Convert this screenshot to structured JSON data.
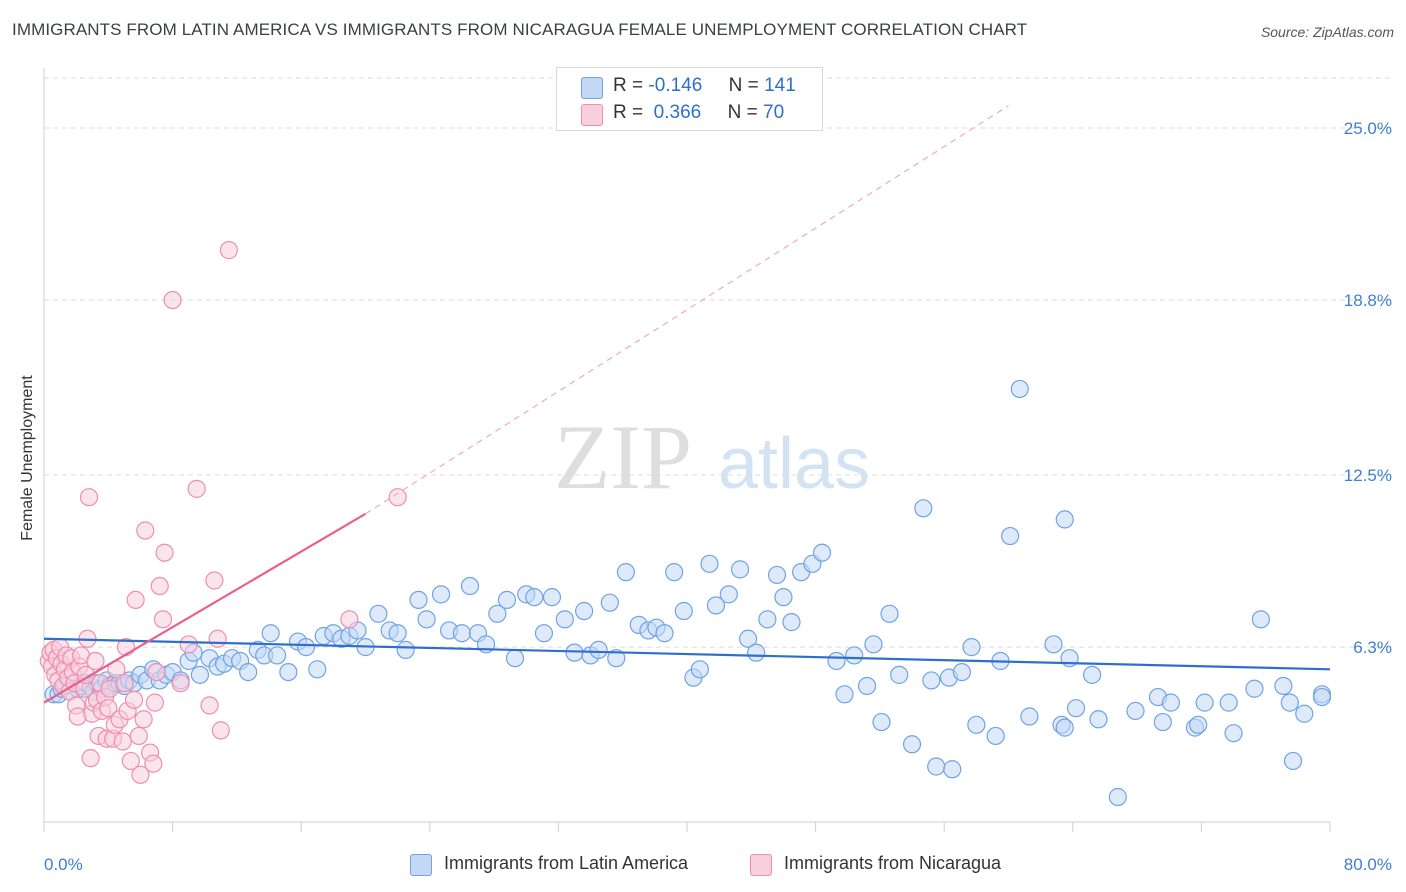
{
  "title": "IMMIGRANTS FROM LATIN AMERICA VS IMMIGRANTS FROM NICARAGUA FEMALE UNEMPLOYMENT CORRELATION CHART",
  "source": "Source: ZipAtlas.com",
  "watermark": "ZIPatlas",
  "colors": {
    "blue": "#6fa3e6",
    "blue_fill": "#c2d8f5",
    "blue_line": "#2f6fcc",
    "pink": "#f08db0",
    "pink_fill": "#f8cfdd",
    "pink_line": "#e8608e",
    "tick_text": "#3f7fcf"
  },
  "stats": [
    {
      "r_label": "R =",
      "r_value": "-0.146",
      "n_label": "N =",
      "n_value": "141"
    },
    {
      "r_label": "R =",
      "r_value": " 0.366",
      "n_label": "N =",
      "n_value": "70"
    }
  ],
  "chart_data": {
    "type": "scatter",
    "title": "IMMIGRANTS FROM LATIN AMERICA VS IMMIGRANTS FROM NICARAGUA FEMALE UNEMPLOYMENT CORRELATION CHART",
    "xlabel": "",
    "ylabel": "Female Unemployment",
    "xlim": [
      0,
      80
    ],
    "ylim": [
      0,
      26.8
    ],
    "x_tick_labels": [
      "0.0%",
      "80.0%"
    ],
    "y_ticks": [
      6.3,
      12.5,
      18.8,
      25.0
    ],
    "y_tick_labels": [
      "6.3%",
      "12.5%",
      "18.8%",
      "25.0%"
    ],
    "grid": "horizontal dashed",
    "legend_position": "bottom-center",
    "series": [
      {
        "name": "Immigrants from Latin America",
        "color": "#6fa3e6",
        "trend": {
          "x0": 0,
          "y0": 6.6,
          "x1": 80,
          "y1": 5.5
        },
        "points": [
          [
            0.6,
            4.6
          ],
          [
            0.9,
            4.6
          ],
          [
            1.1,
            4.8
          ],
          [
            1.3,
            4.9
          ],
          [
            1.6,
            4.7
          ],
          [
            1.9,
            5.0
          ],
          [
            2.1,
            4.8
          ],
          [
            2.3,
            4.9
          ],
          [
            2.6,
            5.0
          ],
          [
            2.9,
            4.9
          ],
          [
            3.1,
            4.7
          ],
          [
            3.3,
            5.0
          ],
          [
            3.6,
            4.8
          ],
          [
            3.9,
            5.1
          ],
          [
            4.1,
            4.9
          ],
          [
            4.4,
            5.0
          ],
          [
            4.7,
            5.0
          ],
          [
            5.0,
            4.9
          ],
          [
            5.3,
            5.1
          ],
          [
            5.6,
            5.0
          ],
          [
            6.0,
            5.3
          ],
          [
            6.4,
            5.1
          ],
          [
            6.8,
            5.5
          ],
          [
            7.2,
            5.1
          ],
          [
            7.6,
            5.3
          ],
          [
            8.0,
            5.4
          ],
          [
            8.5,
            5.1
          ],
          [
            9.0,
            5.8
          ],
          [
            9.3,
            6.1
          ],
          [
            9.7,
            5.3
          ],
          [
            10.3,
            5.9
          ],
          [
            10.8,
            5.6
          ],
          [
            11.2,
            5.7
          ],
          [
            11.7,
            5.9
          ],
          [
            12.2,
            5.8
          ],
          [
            12.7,
            5.4
          ],
          [
            13.3,
            6.2
          ],
          [
            13.7,
            6.0
          ],
          [
            14.1,
            6.8
          ],
          [
            14.5,
            6.0
          ],
          [
            15.2,
            5.4
          ],
          [
            15.8,
            6.5
          ],
          [
            16.3,
            6.3
          ],
          [
            17.0,
            5.5
          ],
          [
            17.4,
            6.7
          ],
          [
            18.0,
            6.8
          ],
          [
            18.5,
            6.6
          ],
          [
            19.0,
            6.7
          ],
          [
            19.5,
            6.9
          ],
          [
            20.0,
            6.3
          ],
          [
            20.8,
            7.5
          ],
          [
            21.5,
            6.9
          ],
          [
            22.0,
            6.8
          ],
          [
            22.5,
            6.2
          ],
          [
            23.3,
            8.0
          ],
          [
            23.8,
            7.3
          ],
          [
            24.7,
            8.2
          ],
          [
            25.2,
            6.9
          ],
          [
            26.0,
            6.8
          ],
          [
            26.5,
            8.5
          ],
          [
            27.0,
            6.8
          ],
          [
            27.5,
            6.4
          ],
          [
            28.2,
            7.5
          ],
          [
            28.8,
            8.0
          ],
          [
            29.3,
            5.9
          ],
          [
            30.0,
            8.2
          ],
          [
            30.5,
            8.1
          ],
          [
            31.1,
            6.8
          ],
          [
            31.6,
            8.1
          ],
          [
            32.4,
            7.3
          ],
          [
            33.0,
            6.1
          ],
          [
            33.6,
            7.6
          ],
          [
            34.0,
            6.0
          ],
          [
            34.5,
            6.2
          ],
          [
            35.2,
            7.9
          ],
          [
            35.6,
            5.9
          ],
          [
            36.2,
            9.0
          ],
          [
            37.0,
            7.1
          ],
          [
            37.6,
            6.9
          ],
          [
            38.1,
            7.0
          ],
          [
            38.6,
            6.8
          ],
          [
            39.2,
            9.0
          ],
          [
            39.8,
            7.6
          ],
          [
            40.4,
            5.2
          ],
          [
            40.8,
            5.5
          ],
          [
            41.4,
            9.3
          ],
          [
            41.8,
            7.8
          ],
          [
            42.6,
            8.2
          ],
          [
            43.3,
            9.1
          ],
          [
            43.8,
            6.6
          ],
          [
            44.3,
            6.1
          ],
          [
            45.0,
            7.3
          ],
          [
            45.6,
            8.9
          ],
          [
            46.0,
            8.1
          ],
          [
            46.5,
            7.2
          ],
          [
            47.1,
            9.0
          ],
          [
            47.8,
            9.3
          ],
          [
            48.4,
            9.7
          ],
          [
            49.3,
            5.8
          ],
          [
            49.8,
            4.6
          ],
          [
            50.4,
            6.0
          ],
          [
            51.2,
            4.9
          ],
          [
            51.6,
            6.4
          ],
          [
            52.1,
            3.6
          ],
          [
            52.6,
            7.5
          ],
          [
            53.2,
            5.3
          ],
          [
            54.0,
            2.8
          ],
          [
            54.7,
            11.3
          ],
          [
            55.2,
            5.1
          ],
          [
            55.5,
            2.0
          ],
          [
            56.3,
            5.2
          ],
          [
            56.5,
            1.9
          ],
          [
            57.1,
            5.4
          ],
          [
            57.7,
            6.3
          ],
          [
            58.0,
            3.5
          ],
          [
            59.2,
            3.1
          ],
          [
            59.5,
            5.8
          ],
          [
            60.1,
            10.3
          ],
          [
            60.7,
            15.6
          ],
          [
            61.3,
            3.8
          ],
          [
            62.8,
            6.4
          ],
          [
            63.3,
            3.5
          ],
          [
            63.5,
            3.4
          ],
          [
            63.5,
            10.9
          ],
          [
            63.8,
            5.9
          ],
          [
            64.2,
            4.1
          ],
          [
            65.2,
            5.3
          ],
          [
            65.6,
            3.7
          ],
          [
            66.8,
            0.9
          ],
          [
            67.9,
            4.0
          ],
          [
            69.3,
            4.5
          ],
          [
            69.6,
            3.6
          ],
          [
            70.1,
            4.3
          ],
          [
            71.6,
            3.4
          ],
          [
            71.8,
            3.5
          ],
          [
            72.2,
            4.3
          ],
          [
            73.7,
            4.3
          ],
          [
            74.0,
            3.2
          ],
          [
            75.3,
            4.8
          ],
          [
            75.7,
            7.3
          ],
          [
            77.1,
            4.9
          ],
          [
            77.5,
            4.3
          ],
          [
            77.7,
            2.2
          ],
          [
            78.4,
            3.9
          ],
          [
            79.8,
            4.6
          ],
          [
            81.2,
            4.5
          ]
        ]
      },
      {
        "name": "Immigrants from Nicaragua",
        "color": "#f08db0",
        "trend": {
          "x0": 0,
          "y0": 4.3,
          "x1": 20,
          "y1": 11.1,
          "dashed_to": {
            "x": 60,
            "y": 25.8
          }
        },
        "points": [
          [
            0.3,
            5.8
          ],
          [
            0.4,
            6.1
          ],
          [
            0.5,
            5.6
          ],
          [
            0.6,
            6.2
          ],
          [
            0.7,
            5.3
          ],
          [
            0.8,
            5.9
          ],
          [
            0.9,
            5.1
          ],
          [
            1.0,
            6.3
          ],
          [
            1.1,
            5.7
          ],
          [
            1.2,
            4.9
          ],
          [
            1.3,
            5.5
          ],
          [
            1.4,
            6.0
          ],
          [
            1.5,
            5.2
          ],
          [
            1.6,
            4.7
          ],
          [
            1.7,
            5.9
          ],
          [
            1.8,
            5.4
          ],
          [
            1.9,
            5.0
          ],
          [
            2.0,
            4.2
          ],
          [
            2.1,
            3.8
          ],
          [
            2.2,
            5.6
          ],
          [
            2.3,
            6.0
          ],
          [
            2.5,
            4.8
          ],
          [
            2.6,
            5.3
          ],
          [
            2.7,
            6.6
          ],
          [
            2.8,
            11.7
          ],
          [
            2.9,
            2.3
          ],
          [
            3.0,
            3.9
          ],
          [
            3.1,
            4.3
          ],
          [
            3.2,
            5.8
          ],
          [
            3.3,
            4.4
          ],
          [
            3.4,
            3.1
          ],
          [
            3.5,
            5.0
          ],
          [
            3.6,
            4.0
          ],
          [
            3.8,
            4.5
          ],
          [
            3.9,
            3.0
          ],
          [
            4.0,
            4.1
          ],
          [
            4.1,
            4.8
          ],
          [
            4.3,
            3.0
          ],
          [
            4.4,
            3.5
          ],
          [
            4.5,
            5.5
          ],
          [
            4.7,
            3.7
          ],
          [
            4.9,
            2.9
          ],
          [
            5.0,
            5.0
          ],
          [
            5.1,
            6.3
          ],
          [
            5.2,
            4.0
          ],
          [
            5.4,
            2.2
          ],
          [
            5.6,
            4.4
          ],
          [
            5.7,
            8.0
          ],
          [
            5.9,
            3.1
          ],
          [
            6.0,
            1.7
          ],
          [
            6.2,
            3.7
          ],
          [
            6.3,
            10.5
          ],
          [
            6.6,
            2.5
          ],
          [
            6.8,
            2.1
          ],
          [
            6.9,
            4.3
          ],
          [
            7.0,
            5.4
          ],
          [
            7.2,
            8.5
          ],
          [
            7.4,
            7.3
          ],
          [
            7.5,
            9.7
          ],
          [
            8.0,
            18.8
          ],
          [
            8.5,
            5.0
          ],
          [
            9.0,
            6.4
          ],
          [
            9.5,
            12.0
          ],
          [
            10.3,
            4.2
          ],
          [
            10.6,
            8.7
          ],
          [
            10.8,
            6.6
          ],
          [
            11.0,
            3.3
          ],
          [
            11.5,
            20.6
          ],
          [
            19.0,
            7.3
          ],
          [
            22.0,
            11.7
          ]
        ]
      }
    ]
  },
  "legend": [
    {
      "label": "Immigrants from Latin America"
    },
    {
      "label": "Immigrants from Nicaragua"
    }
  ]
}
